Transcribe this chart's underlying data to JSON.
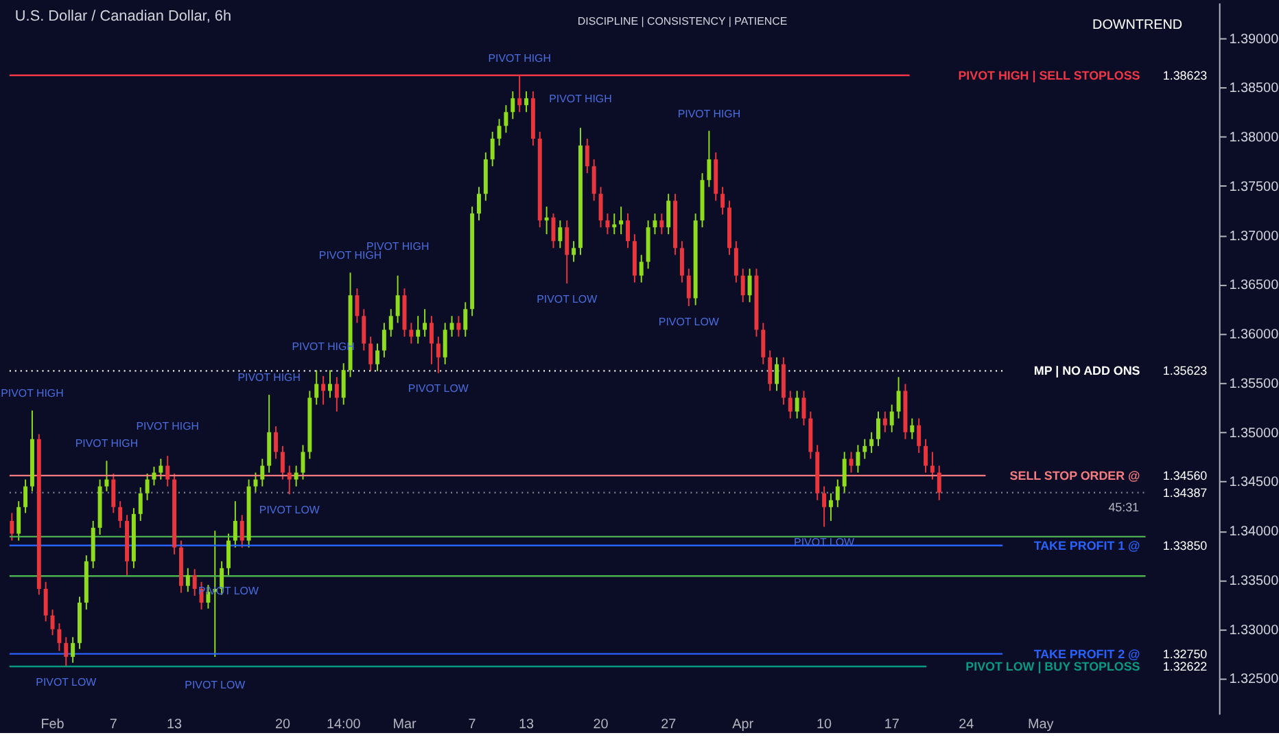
{
  "chart_data": {
    "type": "candlestick",
    "title": "U.S. Dollar / Canadian Dollar, 6h",
    "categories": [
      null,
      null,
      null,
      null,
      null,
      null,
      "Feb",
      null,
      null,
      null,
      null,
      null,
      null,
      null,
      null,
      "7",
      null,
      null,
      null,
      null,
      null,
      null,
      null,
      null,
      "13",
      null,
      null,
      null,
      null,
      null,
      null,
      null,
      null,
      null,
      null,
      null,
      null,
      null,
      null,
      null,
      "20",
      null,
      null,
      null,
      null,
      null,
      null,
      null,
      null,
      "14:00",
      null,
      null,
      null,
      null,
      null,
      null,
      null,
      null,
      "Mar",
      null,
      null,
      null,
      null,
      null,
      null,
      null,
      null,
      null,
      "7",
      null,
      null,
      null,
      null,
      null,
      null,
      null,
      "13",
      null,
      null,
      null,
      null,
      null,
      null,
      null,
      null,
      null,
      null,
      "20",
      null,
      null,
      null,
      null,
      null,
      null,
      null,
      null,
      null,
      "27",
      null,
      null,
      null,
      null,
      null,
      null,
      null,
      null,
      null,
      null,
      "Apr",
      null,
      null,
      null,
      null,
      null,
      null,
      null,
      null,
      null,
      null,
      null,
      "10",
      null,
      null,
      null,
      null,
      null,
      null,
      null,
      null,
      null,
      "17",
      null,
      null,
      null,
      null,
      null,
      null,
      null,
      null,
      null,
      null,
      "24",
      null,
      null,
      null,
      null,
      null,
      null,
      null,
      null,
      null,
      null,
      "May",
      null,
      null,
      null,
      null,
      null,
      null,
      null,
      null,
      null,
      null,
      null,
      null,
      null,
      null,
      null,
      null,
      null,
      null,
      null,
      null,
      null,
      null,
      null,
      null,
      null,
      null
    ],
    "colors": [
      "#e8363c",
      "#8fdc1e",
      "#8fdc1e",
      "#8fdc1e",
      "#e8363c",
      "#e8363c",
      "#e8363c",
      "#e8363c",
      "#e8363c",
      "#8fdc1e",
      "#8fdc1e",
      "#8fdc1e",
      "#8fdc1e",
      "#8fdc1e",
      "#8fdc1e",
      "#e8363c",
      "#e8363c",
      "#e8363c",
      "#8fdc1e",
      "#8fdc1e",
      "#8fdc1e",
      "#8fdc1e",
      "#8fdc1e",
      "#e8363c",
      "#e8363c",
      "#e8363c",
      "#8fdc1e",
      "#e8363c",
      "#e8363c",
      "#8fdc1e",
      "#8fdc1e",
      "#8fdc1e",
      "#8fdc1e",
      "#8fdc1e",
      "#e8363c",
      "#8fdc1e",
      "#8fdc1e",
      "#8fdc1e",
      "#8fdc1e",
      "#e8363c",
      "#e8363c",
      "#e8363c",
      "#8fdc1e",
      "#8fdc1e",
      "#8fdc1e",
      "#8fdc1e",
      "#e8363c",
      "#8fdc1e",
      "#e8363c",
      "#8fdc1e",
      "#8fdc1e",
      "#e8363c",
      "#e8363c",
      "#e8363c",
      "#8fdc1e",
      "#8fdc1e",
      "#8fdc1e",
      "#8fdc1e",
      "#e8363c",
      "#e8363c",
      "#8fdc1e",
      "#8fdc1e",
      "#e8363c",
      "#e8363c",
      "#8fdc1e",
      "#8fdc1e",
      "#e8363c",
      "#8fdc1e",
      "#8fdc1e",
      "#8fdc1e",
      "#8fdc1e",
      "#8fdc1e",
      "#8fdc1e",
      "#8fdc1e",
      "#8fdc1e",
      "#e8363c",
      "#8fdc1e",
      "#e8363c",
      "#e8363c",
      "#8fdc1e",
      "#e8363c",
      "#8fdc1e",
      "#e8363c",
      "#8fdc1e",
      "#8fdc1e",
      "#e8363c",
      "#e8363c",
      "#e8363c",
      "#e8363c",
      "#8fdc1e",
      "#8fdc1e",
      "#e8363c",
      "#e8363c",
      "#8fdc1e",
      "#8fdc1e",
      "#8fdc1e",
      "#e8363c",
      "#8fdc1e",
      "#e8363c",
      "#e8363c",
      "#e8363c",
      "#8fdc1e",
      "#8fdc1e",
      "#8fdc1e",
      "#e8363c",
      "#e8363c",
      "#e8363c",
      "#e8363c",
      "#e8363c",
      "#8fdc1e",
      "#e8363c",
      "#e8363c",
      "#e8363c",
      "#8fdc1e",
      "#e8363c",
      "#e8363c",
      "#8fdc1e",
      "#e8363c",
      "#e8363c",
      "#e8363c",
      "#e8363c",
      "#8fdc1e",
      "#8fdc1e",
      "#8fdc1e",
      "#e8363c",
      "#8fdc1e",
      "#8fdc1e",
      "#8fdc1e",
      "#8fdc1e",
      "#e8363c",
      "#8fdc1e",
      "#8fdc1e",
      "#e8363c",
      "#8fdc1e",
      "#e8363c",
      "#e8363c",
      "#e8363c",
      "#e8363c",
      null,
      null,
      null,
      null,
      null,
      null,
      null,
      null,
      null,
      null,
      null,
      null,
      null,
      null,
      null,
      null,
      null,
      null,
      null,
      null,
      null,
      null,
      null,
      null,
      null,
      null,
      null,
      null,
      null,
      null,
      null,
      null,
      null,
      null,
      null,
      null,
      null,
      null,
      null,
      null,
      null
    ],
    "ohlc": [
      [
        1.341,
        1.3418,
        1.339,
        1.3397
      ],
      [
        1.3397,
        1.343,
        1.339,
        1.3424
      ],
      [
        1.3424,
        1.3452,
        1.3418,
        1.3445
      ],
      [
        1.3445,
        1.3522,
        1.344,
        1.3493
      ],
      [
        1.3493,
        1.3498,
        1.3335,
        1.3341
      ],
      [
        1.3341,
        1.3348,
        1.3308,
        1.3314
      ],
      [
        1.3314,
        1.332,
        1.3294,
        1.33
      ],
      [
        1.33,
        1.3306,
        1.3278,
        1.3286
      ],
      [
        1.3286,
        1.3292,
        1.3262,
        1.3272
      ],
      [
        1.3272,
        1.3292,
        1.3266,
        1.3286
      ],
      [
        1.3286,
        1.3333,
        1.328,
        1.3327
      ],
      [
        1.3327,
        1.3375,
        1.332,
        1.3369
      ],
      [
        1.3369,
        1.341,
        1.3362,
        1.3403
      ],
      [
        1.3403,
        1.3452,
        1.3396,
        1.3445
      ],
      [
        1.3445,
        1.3471,
        1.344,
        1.3452
      ],
      [
        1.3452,
        1.3458,
        1.3418,
        1.3424
      ],
      [
        1.3424,
        1.343,
        1.3403,
        1.341
      ],
      [
        1.341,
        1.3416,
        1.3355,
        1.3369
      ],
      [
        1.3369,
        1.3423,
        1.3362,
        1.3417
      ],
      [
        1.3417,
        1.3444,
        1.341,
        1.3438
      ],
      [
        1.3438,
        1.3458,
        1.3431,
        1.3452
      ],
      [
        1.3452,
        1.3465,
        1.3446,
        1.3459
      ],
      [
        1.3459,
        1.3473,
        1.3452,
        1.3466
      ],
      [
        1.3466,
        1.3476,
        1.3445,
        1.3452
      ],
      [
        1.3452,
        1.3458,
        1.3376,
        1.3383
      ],
      [
        1.3383,
        1.339,
        1.3337,
        1.3344
      ],
      [
        1.3344,
        1.3362,
        1.3338,
        1.3355
      ],
      [
        1.3355,
        1.3361,
        1.3334,
        1.3341
      ],
      [
        1.3341,
        1.3348,
        1.332,
        1.3327
      ],
      [
        1.3327,
        1.3345,
        1.3321,
        1.3338
      ],
      [
        1.3338,
        1.34,
        1.3272,
        1.3341
      ],
      [
        1.3341,
        1.3369,
        1.3335,
        1.3362
      ],
      [
        1.3362,
        1.3397,
        1.3355,
        1.339
      ],
      [
        1.339,
        1.343,
        1.3383,
        1.341
      ],
      [
        1.341,
        1.3416,
        1.3383,
        1.339
      ],
      [
        1.339,
        1.3452,
        1.3383,
        1.3445
      ],
      [
        1.3445,
        1.3459,
        1.3439,
        1.3452
      ],
      [
        1.3452,
        1.3473,
        1.3445,
        1.3466
      ],
      [
        1.3466,
        1.3538,
        1.3459,
        1.35
      ],
      [
        1.35,
        1.3506,
        1.3473,
        1.348
      ],
      [
        1.348,
        1.3486,
        1.3452,
        1.3459
      ],
      [
        1.3459,
        1.3466,
        1.3437,
        1.3452
      ],
      [
        1.3452,
        1.3466,
        1.3445,
        1.3459
      ],
      [
        1.3459,
        1.3487,
        1.3452,
        1.348
      ],
      [
        1.348,
        1.3542,
        1.3473,
        1.3535
      ],
      [
        1.3535,
        1.3563,
        1.3528,
        1.3549
      ],
      [
        1.3549,
        1.3557,
        1.3528,
        1.3542
      ],
      [
        1.3542,
        1.3563,
        1.3535,
        1.3549
      ],
      [
        1.3549,
        1.3556,
        1.3521,
        1.3535
      ],
      [
        1.3535,
        1.357,
        1.3528,
        1.3563
      ],
      [
        1.3563,
        1.3662,
        1.3556,
        1.3639
      ],
      [
        1.3639,
        1.3646,
        1.3611,
        1.3618
      ],
      [
        1.3618,
        1.3625,
        1.3583,
        1.359
      ],
      [
        1.359,
        1.3597,
        1.3562,
        1.3569
      ],
      [
        1.3569,
        1.359,
        1.3562,
        1.3583
      ],
      [
        1.3583,
        1.3611,
        1.3576,
        1.3604
      ],
      [
        1.3604,
        1.3625,
        1.3597,
        1.3618
      ],
      [
        1.3618,
        1.3659,
        1.3611,
        1.3639
      ],
      [
        1.3639,
        1.3646,
        1.3597,
        1.3604
      ],
      [
        1.3604,
        1.3611,
        1.359,
        1.3597
      ],
      [
        1.3597,
        1.3618,
        1.359,
        1.3604
      ],
      [
        1.3604,
        1.3625,
        1.3597,
        1.3611
      ],
      [
        1.3611,
        1.3618,
        1.3569,
        1.359
      ],
      [
        1.359,
        1.3597,
        1.356,
        1.3576
      ],
      [
        1.3576,
        1.3611,
        1.3569,
        1.3604
      ],
      [
        1.3604,
        1.3618,
        1.3597,
        1.3611
      ],
      [
        1.3611,
        1.3618,
        1.3597,
        1.3604
      ],
      [
        1.3604,
        1.3632,
        1.3597,
        1.3625
      ],
      [
        1.3625,
        1.3729,
        1.3618,
        1.3722
      ],
      [
        1.3722,
        1.3749,
        1.3715,
        1.3742
      ],
      [
        1.3742,
        1.3784,
        1.3735,
        1.3777
      ],
      [
        1.3777,
        1.3805,
        1.377,
        1.3798
      ],
      [
        1.3798,
        1.3818,
        1.3791,
        1.3811
      ],
      [
        1.3811,
        1.3832,
        1.3804,
        1.3825
      ],
      [
        1.3825,
        1.3846,
        1.3818,
        1.3839
      ],
      [
        1.3839,
        1.38623,
        1.3825,
        1.3832
      ],
      [
        1.3832,
        1.3846,
        1.3825,
        1.3839
      ],
      [
        1.3839,
        1.3846,
        1.3791,
        1.3798
      ],
      [
        1.3798,
        1.3805,
        1.3708,
        1.3715
      ],
      [
        1.3715,
        1.3729,
        1.3701,
        1.3718
      ],
      [
        1.3718,
        1.3722,
        1.3687,
        1.3694
      ],
      [
        1.3694,
        1.3715,
        1.3687,
        1.3708
      ],
      [
        1.3708,
        1.3715,
        1.3651,
        1.368
      ],
      [
        1.368,
        1.3694,
        1.3673,
        1.3687
      ],
      [
        1.3687,
        1.3809,
        1.368,
        1.3791
      ],
      [
        1.3791,
        1.3798,
        1.3763,
        1.377
      ],
      [
        1.377,
        1.3777,
        1.3735,
        1.3742
      ],
      [
        1.3742,
        1.3749,
        1.3708,
        1.3715
      ],
      [
        1.3715,
        1.3722,
        1.3701,
        1.3708
      ],
      [
        1.3708,
        1.3722,
        1.3701,
        1.3711
      ],
      [
        1.3711,
        1.3729,
        1.3701,
        1.3715
      ],
      [
        1.3715,
        1.3722,
        1.3687,
        1.3694
      ],
      [
        1.3694,
        1.3701,
        1.3652,
        1.3659
      ],
      [
        1.3659,
        1.368,
        1.3652,
        1.3673
      ],
      [
        1.3673,
        1.3715,
        1.3666,
        1.3708
      ],
      [
        1.3708,
        1.3722,
        1.3701,
        1.3715
      ],
      [
        1.3715,
        1.3722,
        1.3701,
        1.3708
      ],
      [
        1.3708,
        1.3742,
        1.3701,
        1.3735
      ],
      [
        1.3735,
        1.3742,
        1.368,
        1.3687
      ],
      [
        1.3687,
        1.3694,
        1.3652,
        1.3659
      ],
      [
        1.3659,
        1.3666,
        1.3628,
        1.3636
      ],
      [
        1.3636,
        1.3722,
        1.3629,
        1.3715
      ],
      [
        1.3715,
        1.3763,
        1.3708,
        1.3756
      ],
      [
        1.3756,
        1.3806,
        1.3749,
        1.3777
      ],
      [
        1.3777,
        1.3784,
        1.3735,
        1.3742
      ],
      [
        1.3742,
        1.3749,
        1.3721,
        1.3728
      ],
      [
        1.3728,
        1.3735,
        1.368,
        1.3687
      ],
      [
        1.3687,
        1.3694,
        1.3652,
        1.3659
      ],
      [
        1.3659,
        1.3666,
        1.3632,
        1.3639
      ],
      [
        1.3639,
        1.3666,
        1.3632,
        1.3659
      ],
      [
        1.3659,
        1.3666,
        1.3597,
        1.3604
      ],
      [
        1.3604,
        1.3611,
        1.3569,
        1.3576
      ],
      [
        1.3576,
        1.3583,
        1.3542,
        1.3549
      ],
      [
        1.3549,
        1.3576,
        1.3542,
        1.3569
      ],
      [
        1.3569,
        1.3576,
        1.3528,
        1.3535
      ],
      [
        1.3535,
        1.3542,
        1.3514,
        1.3521
      ],
      [
        1.3521,
        1.3542,
        1.3514,
        1.3535
      ],
      [
        1.3535,
        1.3542,
        1.3507,
        1.3514
      ],
      [
        1.3514,
        1.3521,
        1.3473,
        1.348
      ],
      [
        1.348,
        1.3487,
        1.3431,
        1.3438
      ],
      [
        1.3438,
        1.3445,
        1.3404,
        1.3424
      ],
      [
        1.3424,
        1.3438,
        1.341,
        1.3431
      ],
      [
        1.3431,
        1.3452,
        1.3424,
        1.3445
      ],
      [
        1.3445,
        1.348,
        1.3438,
        1.3473
      ],
      [
        1.3473,
        1.348,
        1.3459,
        1.3466
      ],
      [
        1.3466,
        1.3487,
        1.3459,
        1.348
      ],
      [
        1.348,
        1.3493,
        1.3473,
        1.3486
      ],
      [
        1.3486,
        1.35,
        1.3479,
        1.3493
      ],
      [
        1.3493,
        1.3521,
        1.3486,
        1.3514
      ],
      [
        1.3514,
        1.3521,
        1.35,
        1.3507
      ],
      [
        1.3507,
        1.3528,
        1.35,
        1.3521
      ],
      [
        1.3521,
        1.3556,
        1.3514,
        1.3542
      ],
      [
        1.3542,
        1.3549,
        1.3493,
        1.35
      ],
      [
        1.35,
        1.3514,
        1.3493,
        1.3507
      ],
      [
        1.3507,
        1.3514,
        1.3479,
        1.3486
      ],
      [
        1.3486,
        1.3493,
        1.3459,
        1.3466
      ],
      [
        1.3466,
        1.348,
        1.3452,
        1.3459
      ],
      [
        1.3459,
        1.3466,
        1.3431,
        1.34387
      ],
      null,
      null,
      null,
      null,
      null,
      null,
      null,
      null,
      null,
      null,
      null,
      null,
      null,
      null,
      null,
      null,
      null,
      null,
      null,
      null,
      null,
      null,
      null,
      null,
      null,
      null,
      null,
      null,
      null,
      null,
      null,
      null,
      null,
      null,
      null,
      null,
      null,
      null,
      null,
      null,
      null
    ],
    "ylim": [
      1.3214,
      1.3936
    ],
    "yticks": [
      {
        "value": 1.325,
        "label": "1.32500"
      },
      {
        "value": 1.33,
        "label": "1.33000"
      },
      {
        "value": 1.335,
        "label": "1.33500"
      },
      {
        "value": 1.34,
        "label": "1.34000"
      },
      {
        "value": 1.345,
        "label": "1.34500"
      },
      {
        "value": 1.35,
        "label": "1.35000"
      },
      {
        "value": 1.355,
        "label": "1.35500"
      },
      {
        "value": 1.36,
        "label": "1.36000"
      },
      {
        "value": 1.365,
        "label": "1.36500"
      },
      {
        "value": 1.37,
        "label": "1.37000"
      },
      {
        "value": 1.375,
        "label": "1.37500"
      },
      {
        "value": 1.38,
        "label": "1.38000"
      },
      {
        "value": 1.385,
        "label": "1.38500"
      },
      {
        "value": 1.39,
        "label": "1.39000"
      }
    ],
    "ref_lines": [
      {
        "axis": "y",
        "value": 1.38623,
        "label": "PIVOT HIGH | SELL STOPLOSS",
        "color": "#f23645",
        "line_style": "solid"
      },
      {
        "axis": "y",
        "value": 1.35623,
        "label": "MP | NO ADD ONS",
        "color": "#ffffff",
        "line_style": "dotted"
      },
      {
        "axis": "y",
        "value": 1.3456,
        "label": "SELL STOP ORDER @",
        "color": "#f77c80",
        "line_style": "solid"
      },
      {
        "axis": "y",
        "value": 1.34387,
        "label": null,
        "color": "#787b86",
        "line_style": "dotted"
      },
      {
        "axis": "y",
        "value": 1.3394,
        "label": null,
        "color": "#4caf50",
        "line_style": "solid"
      },
      {
        "axis": "y",
        "value": 1.3385,
        "label": "TAKE PROFIT 1 @",
        "color": "#2962ff",
        "line_style": "solid"
      },
      {
        "axis": "y",
        "value": 1.3354,
        "label": null,
        "color": "#4caf50",
        "line_style": "solid"
      },
      {
        "axis": "y",
        "value": 1.3275,
        "label": "TAKE PROFIT 2 @",
        "color": "#2962ff",
        "line_style": "solid"
      },
      {
        "axis": "y",
        "value": 1.32622,
        "label": "PIVOT LOW | BUY STOPLOSS",
        "color": "#089981",
        "line_style": "solid"
      }
    ],
    "annotations": [
      "DISCIPLINE | CONSISTENCY | PATIENCE",
      "DOWNTREND",
      "45:31",
      {
        "text": "PIVOT HIGH",
        "y": 1.3522
      },
      {
        "text": "PIVOT HIGH",
        "y": 1.3471
      },
      {
        "text": "PIVOT HIGH",
        "y": 1.3476
      },
      {
        "text": "PIVOT HIGH",
        "y": 1.3538
      },
      {
        "text": "PIVOT HIGH",
        "y": 1.3662
      },
      {
        "text": "PIVOT HIGH",
        "y": 1.3659
      },
      {
        "text": "PIVOT HIGH",
        "y": 1.38623
      },
      {
        "text": "PIVOT HIGH",
        "y": 1.3809
      },
      {
        "text": "PIVOT HIGH",
        "y": 1.3806
      },
      {
        "text": "PIVOT HIGH",
        "y": 1.3557
      },
      {
        "text": "PIVOT LOW",
        "y": 1.3262
      },
      {
        "text": "PIVOT LOW",
        "y": 1.3355
      },
      {
        "text": "PIVOT LOW",
        "y": 1.3272
      },
      {
        "text": "PIVOT LOW",
        "y": 1.3437
      },
      {
        "text": "PIVOT LOW",
        "y": 1.356
      },
      {
        "text": "PIVOT LOW",
        "y": 1.3651
      },
      {
        "text": "PIVOT LOW",
        "y": 1.3628
      },
      {
        "text": "PIVOT LOW",
        "y": 1.3404
      }
    ],
    "y2lim": [
      1.3214,
      1.3936
    ],
    "y2ticks": [
      {
        "value": 1.32622,
        "label": "1.32622"
      },
      {
        "value": 1.3275,
        "label": "1.32750"
      },
      {
        "value": 1.3385,
        "label": "1.33850"
      },
      {
        "value": 1.34387,
        "label": "1.34387"
      },
      {
        "value": 1.3456,
        "label": "1.34560"
      },
      {
        "value": 1.35623,
        "label": "1.35623"
      },
      {
        "value": 1.38623,
        "label": "1.38623"
      }
    ],
    "grid": false
  }
}
